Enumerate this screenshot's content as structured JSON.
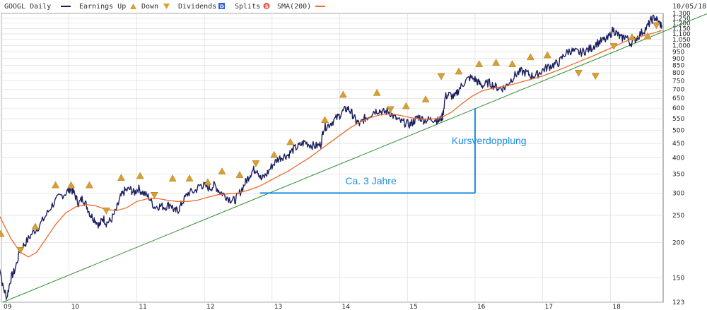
{
  "header": {
    "ticker_label": "GOOGL Daily",
    "earnings_label": "Earnings Up",
    "down_label": "Down",
    "dividends_label": "Dividends",
    "dividends_glyph": "D",
    "splits_label": "Splits",
    "splits_glyph": "S",
    "sma_label": "SMA(200)",
    "date_label": "10/05/18"
  },
  "colors": {
    "price": "#1c1f5e",
    "sma": "#ef6a2d",
    "trendline": "#2f8f2f",
    "annotation": "#1a8ee0",
    "earnings_marker": "#d8a030",
    "dividends_marker": "#2a5fd8",
    "splits_marker": "#e05a4a",
    "grid": "#d6d6d6"
  },
  "chart_data": {
    "type": "line",
    "title": "",
    "xlabel": "",
    "ylabel": "",
    "y_scale": "log",
    "ylim": [
      123,
      1300
    ],
    "xlim": [
      2009.0,
      2018.78
    ],
    "grid": true,
    "legend_position": "top",
    "x_ticks": [
      {
        "label": "09",
        "value": 2009.0
      },
      {
        "label": "10",
        "value": 2010.0
      },
      {
        "label": "11",
        "value": 2011.0
      },
      {
        "label": "12",
        "value": 2012.0
      },
      {
        "label": "13",
        "value": 2013.0
      },
      {
        "label": "14",
        "value": 2014.0
      },
      {
        "label": "15",
        "value": 2015.0
      },
      {
        "label": "16",
        "value": 2016.0
      },
      {
        "label": "17",
        "value": 2017.0
      },
      {
        "label": "18",
        "value": 2018.0
      }
    ],
    "y_ticks": [
      {
        "label": "123",
        "value": 123
      },
      {
        "label": "150",
        "value": 150
      },
      {
        "label": "200",
        "value": 200
      },
      {
        "label": "250",
        "value": 250
      },
      {
        "label": "300",
        "value": 300
      },
      {
        "label": "350",
        "value": 350
      },
      {
        "label": "400",
        "value": 400
      },
      {
        "label": "450",
        "value": 450
      },
      {
        "label": "500",
        "value": 500
      },
      {
        "label": "550",
        "value": 550
      },
      {
        "label": "600",
        "value": 600
      },
      {
        "label": "650",
        "value": 650
      },
      {
        "label": "700",
        "value": 700
      },
      {
        "label": "750",
        "value": 750
      },
      {
        "label": "800",
        "value": 800
      },
      {
        "label": "850",
        "value": 850
      },
      {
        "label": "900",
        "value": 900
      },
      {
        "label": "950",
        "value": 950
      },
      {
        "label": "1,000",
        "value": 1000
      },
      {
        "label": "1,050",
        "value": 1050
      },
      {
        "label": "1,100",
        "value": 1100
      },
      {
        "label": "1,150",
        "value": 1150
      },
      {
        "label": "1,200",
        "value": 1200
      },
      {
        "label": "1,250",
        "value": 1250
      },
      {
        "label": "1,300",
        "value": 1300
      }
    ],
    "series": [
      {
        "name": "GOOGL Daily",
        "points": [
          [
            2008.95,
            180
          ],
          [
            2009.02,
            140
          ],
          [
            2009.08,
            128
          ],
          [
            2009.14,
            150
          ],
          [
            2009.2,
            160
          ],
          [
            2009.28,
            190
          ],
          [
            2009.36,
            200
          ],
          [
            2009.45,
            215
          ],
          [
            2009.55,
            228
          ],
          [
            2009.65,
            248
          ],
          [
            2009.75,
            272
          ],
          [
            2009.85,
            290
          ],
          [
            2009.95,
            300
          ],
          [
            2010.02,
            312
          ],
          [
            2010.08,
            298
          ],
          [
            2010.14,
            275
          ],
          [
            2010.2,
            288
          ],
          [
            2010.26,
            270
          ],
          [
            2010.32,
            250
          ],
          [
            2010.38,
            242
          ],
          [
            2010.45,
            230
          ],
          [
            2010.5,
            245
          ],
          [
            2010.55,
            235
          ],
          [
            2010.62,
            240
          ],
          [
            2010.7,
            262
          ],
          [
            2010.76,
            290
          ],
          [
            2010.82,
            305
          ],
          [
            2010.9,
            310
          ],
          [
            2010.96,
            300
          ],
          [
            2011.02,
            312
          ],
          [
            2011.1,
            300
          ],
          [
            2011.18,
            290
          ],
          [
            2011.26,
            268
          ],
          [
            2011.34,
            270
          ],
          [
            2011.42,
            268
          ],
          [
            2011.5,
            275
          ],
          [
            2011.56,
            258
          ],
          [
            2011.62,
            262
          ],
          [
            2011.68,
            280
          ],
          [
            2011.76,
            300
          ],
          [
            2011.86,
            305
          ],
          [
            2011.94,
            320
          ],
          [
            2012.0,
            318
          ],
          [
            2012.08,
            312
          ],
          [
            2012.15,
            320
          ],
          [
            2012.22,
            305
          ],
          [
            2012.3,
            295
          ],
          [
            2012.38,
            285
          ],
          [
            2012.45,
            282
          ],
          [
            2012.52,
            300
          ],
          [
            2012.6,
            325
          ],
          [
            2012.66,
            345
          ],
          [
            2012.72,
            362
          ],
          [
            2012.78,
            365
          ],
          [
            2012.84,
            335
          ],
          [
            2012.92,
            350
          ],
          [
            2013.0,
            375
          ],
          [
            2013.08,
            395
          ],
          [
            2013.16,
            405
          ],
          [
            2013.24,
            410
          ],
          [
            2013.32,
            430
          ],
          [
            2013.4,
            440
          ],
          [
            2013.48,
            455
          ],
          [
            2013.56,
            445
          ],
          [
            2013.64,
            440
          ],
          [
            2013.72,
            445
          ],
          [
            2013.76,
            510
          ],
          [
            2013.82,
            520
          ],
          [
            2013.9,
            540
          ],
          [
            2013.98,
            560
          ],
          [
            2014.05,
            585
          ],
          [
            2014.12,
            600
          ],
          [
            2014.18,
            575
          ],
          [
            2014.24,
            540
          ],
          [
            2014.3,
            525
          ],
          [
            2014.36,
            550
          ],
          [
            2014.42,
            560
          ],
          [
            2014.5,
            585
          ],
          [
            2014.58,
            590
          ],
          [
            2014.65,
            580
          ],
          [
            2014.72,
            585
          ],
          [
            2014.8,
            560
          ],
          [
            2014.88,
            540
          ],
          [
            2014.96,
            532
          ],
          [
            2015.04,
            525
          ],
          [
            2015.1,
            540
          ],
          [
            2015.16,
            560
          ],
          [
            2015.24,
            545
          ],
          [
            2015.32,
            545
          ],
          [
            2015.4,
            550
          ],
          [
            2015.46,
            540
          ],
          [
            2015.52,
            560
          ],
          [
            2015.56,
            660
          ],
          [
            2015.62,
            670
          ],
          [
            2015.7,
            655
          ],
          [
            2015.76,
            700
          ],
          [
            2015.84,
            740
          ],
          [
            2015.92,
            770
          ],
          [
            2016.0,
            760
          ],
          [
            2016.06,
            735
          ],
          [
            2016.12,
            720
          ],
          [
            2016.2,
            740
          ],
          [
            2016.28,
            720
          ],
          [
            2016.36,
            705
          ],
          [
            2016.44,
            710
          ],
          [
            2016.52,
            750
          ],
          [
            2016.6,
            790
          ],
          [
            2016.68,
            810
          ],
          [
            2016.76,
            800
          ],
          [
            2016.84,
            780
          ],
          [
            2016.92,
            790
          ],
          [
            2017.0,
            820
          ],
          [
            2017.08,
            840
          ],
          [
            2017.16,
            855
          ],
          [
            2017.24,
            870
          ],
          [
            2017.32,
            930
          ],
          [
            2017.4,
            960
          ],
          [
            2017.48,
            950
          ],
          [
            2017.56,
            945
          ],
          [
            2017.64,
            960
          ],
          [
            2017.72,
            980
          ],
          [
            2017.8,
            1020
          ],
          [
            2017.88,
            1040
          ],
          [
            2017.96,
            1055
          ],
          [
            2018.04,
            1140
          ],
          [
            2018.1,
            1100
          ],
          [
            2018.16,
            1060
          ],
          [
            2018.22,
            1080
          ],
          [
            2018.3,
            1020
          ],
          [
            2018.38,
            1060
          ],
          [
            2018.46,
            1110
          ],
          [
            2018.54,
            1160
          ],
          [
            2018.6,
            1230
          ],
          [
            2018.66,
            1260
          ],
          [
            2018.72,
            1200
          ],
          [
            2018.76,
            1180
          ]
        ]
      },
      {
        "name": "SMA(200)",
        "points": [
          [
            2008.95,
            255
          ],
          [
            2009.05,
            228
          ],
          [
            2009.15,
            205
          ],
          [
            2009.28,
            185
          ],
          [
            2009.4,
            178
          ],
          [
            2009.52,
            185
          ],
          [
            2009.65,
            205
          ],
          [
            2009.8,
            232
          ],
          [
            2009.95,
            255
          ],
          [
            2010.1,
            268
          ],
          [
            2010.25,
            273
          ],
          [
            2010.4,
            270
          ],
          [
            2010.55,
            262
          ],
          [
            2010.7,
            260
          ],
          [
            2010.85,
            266
          ],
          [
            2011.0,
            280
          ],
          [
            2011.15,
            286
          ],
          [
            2011.3,
            287
          ],
          [
            2011.45,
            283
          ],
          [
            2011.6,
            280
          ],
          [
            2011.75,
            280
          ],
          [
            2011.9,
            283
          ],
          [
            2012.05,
            290
          ],
          [
            2012.2,
            296
          ],
          [
            2012.35,
            298
          ],
          [
            2012.5,
            300
          ],
          [
            2012.65,
            307
          ],
          [
            2012.8,
            316
          ],
          [
            2012.95,
            330
          ],
          [
            2013.1,
            345
          ],
          [
            2013.25,
            360
          ],
          [
            2013.4,
            380
          ],
          [
            2013.55,
            400
          ],
          [
            2013.7,
            425
          ],
          [
            2013.85,
            452
          ],
          [
            2014.0,
            480
          ],
          [
            2014.15,
            510
          ],
          [
            2014.3,
            535
          ],
          [
            2014.45,
            555
          ],
          [
            2014.6,
            568
          ],
          [
            2014.75,
            572
          ],
          [
            2014.9,
            565
          ],
          [
            2015.05,
            555
          ],
          [
            2015.2,
            548
          ],
          [
            2015.35,
            548
          ],
          [
            2015.5,
            555
          ],
          [
            2015.65,
            580
          ],
          [
            2015.8,
            620
          ],
          [
            2015.95,
            660
          ],
          [
            2016.1,
            690
          ],
          [
            2016.25,
            705
          ],
          [
            2016.4,
            715
          ],
          [
            2016.55,
            728
          ],
          [
            2016.7,
            745
          ],
          [
            2016.85,
            762
          ],
          [
            2017.0,
            780
          ],
          [
            2017.15,
            805
          ],
          [
            2017.3,
            830
          ],
          [
            2017.45,
            860
          ],
          [
            2017.6,
            890
          ],
          [
            2017.75,
            920
          ],
          [
            2017.9,
            955
          ],
          [
            2018.05,
            990
          ],
          [
            2018.2,
            1030
          ],
          [
            2018.35,
            1060
          ],
          [
            2018.5,
            1085
          ],
          [
            2018.65,
            1110
          ],
          [
            2018.76,
            1130
          ]
        ]
      }
    ],
    "trendline": {
      "start": [
        2009.02,
        123
      ],
      "end": [
        2018.78,
        1120
      ]
    },
    "earnings_up": [
      [
        2008.99,
        215
      ],
      [
        2009.5,
        228
      ],
      [
        2009.8,
        320
      ],
      [
        2010.03,
        320
      ],
      [
        2010.3,
        320
      ],
      [
        2010.77,
        340
      ],
      [
        2011.05,
        345
      ],
      [
        2011.53,
        338
      ],
      [
        2011.78,
        338
      ],
      [
        2012.05,
        328
      ],
      [
        2012.26,
        358
      ],
      [
        2012.52,
        348
      ],
      [
        2013.03,
        410
      ],
      [
        2013.27,
        455
      ],
      [
        2013.78,
        545
      ],
      [
        2014.05,
        670
      ],
      [
        2014.55,
        680
      ],
      [
        2014.98,
        610
      ],
      [
        2015.27,
        645
      ],
      [
        2015.76,
        810
      ],
      [
        2016.06,
        860
      ],
      [
        2016.31,
        870
      ],
      [
        2016.55,
        860
      ],
      [
        2016.82,
        910
      ],
      [
        2017.07,
        925
      ],
      [
        2018.32,
        1070
      ],
      [
        2018.55,
        1080
      ]
    ],
    "earnings_down": [
      [
        2009.28,
        188
      ],
      [
        2010.55,
        260
      ],
      [
        2011.26,
        295
      ],
      [
        2012.76,
        382
      ],
      [
        2014.75,
        594
      ],
      [
        2015.5,
        778
      ],
      [
        2017.53,
        800
      ],
      [
        2017.78,
        780
      ],
      [
        2018.05,
        995
      ],
      [
        2018.68,
        1180
      ]
    ],
    "annotations": [
      {
        "text": "Kursverdopplung",
        "x": 2016.05,
        "y": 460
      },
      {
        "text": "Ca. 3 Jahre",
        "x": 2014.5,
        "y": 318
      },
      {
        "segment": [
          [
            2012.82,
            300
          ],
          [
            2016.0,
            300
          ]
        ]
      },
      {
        "segment": [
          [
            2016.0,
            300
          ],
          [
            2016.0,
            600
          ]
        ]
      }
    ]
  }
}
